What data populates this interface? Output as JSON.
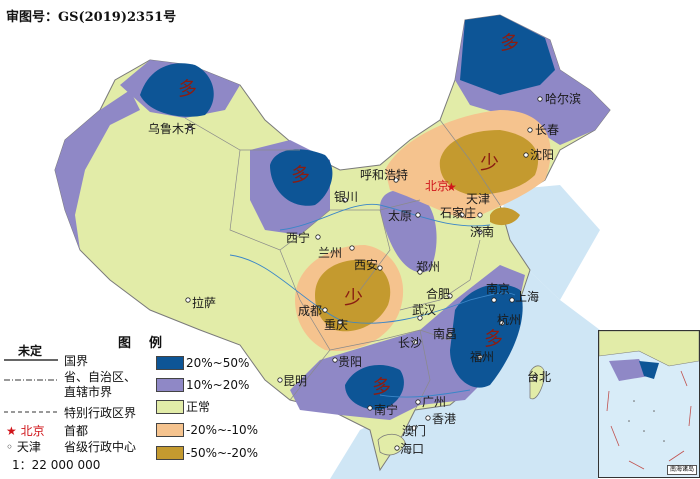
{
  "approval_number": "审图号：GS(2019)2351号",
  "legend": {
    "title": "图例",
    "undetermined": "未定",
    "national_border": "国界",
    "provincial_border_1": "省、自治区、",
    "provincial_border_2": "直辖市界",
    "sar_border": "特别行政区界",
    "capital_sample": "北京",
    "capital": "首都",
    "provincial_center_sample": "天津",
    "provincial_center": "省级行政中心",
    "scale": "1：22 000 000",
    "classes": [
      {
        "label": "20%~50%",
        "color": "#0d5596"
      },
      {
        "label": "10%~20%",
        "color": "#8f88c6"
      },
      {
        "label": "正常",
        "color": "#e2eca8"
      },
      {
        "label": "-20%~-10%",
        "color": "#f5c38e"
      },
      {
        "label": "-50%~-20%",
        "color": "#c49a2f"
      }
    ]
  },
  "anomaly_marks": {
    "more": "多",
    "less": "少"
  },
  "cities": {
    "beijing": "北京",
    "tianjin": "天津",
    "shijiazhuang": "石家庄",
    "taiyuan": "太原",
    "jinan": "济南",
    "hohhot": "呼和浩特",
    "yinchuan": "银川",
    "lanzhou": "兰州",
    "xining": "西宁",
    "xian": "西安",
    "zhengzhou": "郑州",
    "hefei": "合肥",
    "nanjing": "南京",
    "shanghai": "上海",
    "hangzhou": "杭州",
    "wuhan": "武汉",
    "changsha": "长沙",
    "nanchang": "南昌",
    "fuzhou": "福州",
    "taipei": "台北",
    "guangzhou": "广州",
    "hongkong": "香港",
    "macao": "澳门",
    "nanning": "南宁",
    "haikou": "海口",
    "guiyang": "贵阳",
    "kunming": "昆明",
    "chengdu": "成都",
    "chongqing": "重庆",
    "lhasa": "拉萨",
    "urumqi": "乌鲁木齐",
    "harbin": "哈尔滨",
    "changchun": "长春",
    "shenyang": "沈阳"
  },
  "inset": {
    "title": "南海诸岛"
  }
}
